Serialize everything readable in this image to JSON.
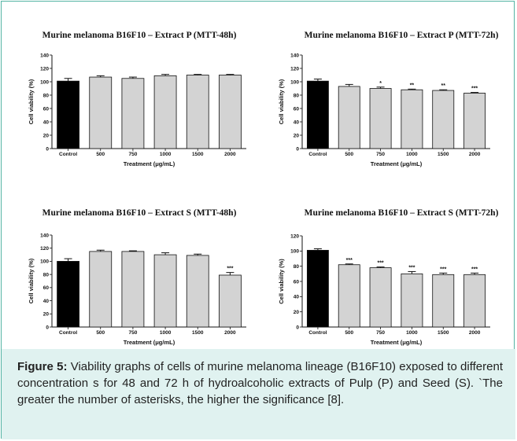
{
  "chart_data": [
    {
      "type": "bar",
      "title": "Murine melanoma B16F10 – Extract P (MTT-48h)",
      "xlabel": "Treatment (μg/mL)",
      "ylabel": "Cell viability (%)",
      "ylim": [
        0,
        140
      ],
      "yticks": [
        0,
        20,
        40,
        60,
        80,
        100,
        120,
        140
      ],
      "categories": [
        "Control",
        "500",
        "750",
        "1000",
        "1500",
        "2000"
      ],
      "values": [
        101,
        107,
        105,
        109,
        110,
        110
      ],
      "errors": [
        4,
        2,
        2,
        2,
        1,
        1
      ],
      "significance": [
        "",
        "",
        "",
        "",
        "",
        ""
      ],
      "colors": [
        "#000000",
        "#d3d3d3",
        "#d3d3d3",
        "#d3d3d3",
        "#d3d3d3",
        "#d3d3d3"
      ],
      "grid": false
    },
    {
      "type": "bar",
      "title": "Murine melanoma B16F10 – Extract P (MTT-72h)",
      "xlabel": "Treatment (μg/mL)",
      "ylabel": "Cell viability (%)",
      "ylim": [
        0,
        140
      ],
      "yticks": [
        0,
        20,
        40,
        60,
        80,
        100,
        120,
        140
      ],
      "categories": [
        "Control",
        "500",
        "750",
        "1000",
        "1500",
        "2000"
      ],
      "values": [
        101,
        93,
        90,
        88,
        87,
        83
      ],
      "errors": [
        3,
        3,
        2,
        1,
        1,
        1
      ],
      "significance": [
        "",
        "",
        "*",
        "**",
        "**",
        "***"
      ],
      "colors": [
        "#000000",
        "#d3d3d3",
        "#d3d3d3",
        "#d3d3d3",
        "#d3d3d3",
        "#d3d3d3"
      ],
      "grid": false
    },
    {
      "type": "bar",
      "title": "Murine melanoma B16F10 – Extract S (MTT-48h)",
      "xlabel": "Treatment (μg/mL)",
      "ylabel": "Cell viability (%)",
      "ylim": [
        0,
        140
      ],
      "yticks": [
        0,
        20,
        40,
        60,
        80,
        100,
        120,
        140
      ],
      "categories": [
        "Control",
        "500",
        "750",
        "1000",
        "1500",
        "2000"
      ],
      "values": [
        100,
        115,
        115,
        110,
        109,
        79
      ],
      "errors": [
        4,
        2,
        1,
        3,
        2,
        4
      ],
      "significance": [
        "",
        "",
        "",
        "",
        "",
        "***"
      ],
      "colors": [
        "#000000",
        "#d3d3d3",
        "#d3d3d3",
        "#d3d3d3",
        "#d3d3d3",
        "#d3d3d3"
      ],
      "grid": false
    },
    {
      "type": "bar",
      "title": "Murine melanoma B16F10 – Extract S (MTT-72h)",
      "xlabel": "Treatment (μg/mL)",
      "ylabel": "Cell viability (%)",
      "ylim": [
        0,
        120
      ],
      "yticks": [
        0,
        20,
        40,
        60,
        80,
        100,
        120
      ],
      "categories": [
        "Control",
        "500",
        "750",
        "1000",
        "1500",
        "2000"
      ],
      "values": [
        101,
        82,
        78,
        70,
        69,
        69
      ],
      "errors": [
        2,
        1,
        1,
        3,
        2,
        2
      ],
      "significance": [
        "",
        "***",
        "***",
        "***",
        "***",
        "***"
      ],
      "colors": [
        "#000000",
        "#d3d3d3",
        "#d3d3d3",
        "#d3d3d3",
        "#d3d3d3",
        "#d3d3d3"
      ],
      "grid": false
    }
  ],
  "caption": {
    "label": "Figure 5:",
    "text": " Viability graphs of cells of murine melanoma lineage (B16F10) exposed to different concentration s for 48 and 72 h of hydroalcoholic extracts of Pulp (P) and Seed (S). `The greater the number of asterisks, the higher the significance [8]."
  },
  "colors": {
    "border": "#54b4a4",
    "caption_background": "#e0f2f0"
  }
}
